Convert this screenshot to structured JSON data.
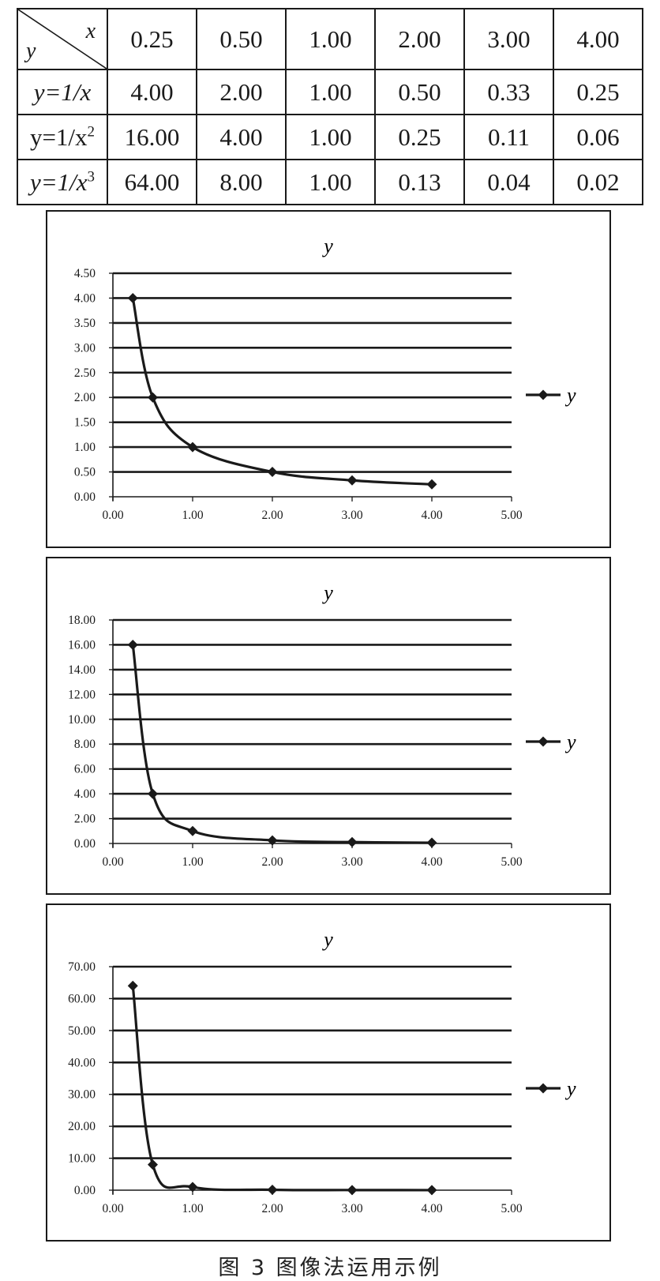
{
  "table": {
    "corner_x": "x",
    "corner_y": "y",
    "header": [
      "0.25",
      "0.50",
      "1.00",
      "2.00",
      "3.00",
      "4.00"
    ],
    "rows": [
      {
        "label_base": "y=1/x",
        "label_exp": "",
        "values": [
          "4.00",
          "2.00",
          "1.00",
          "0.50",
          "0.33",
          "0.25"
        ]
      },
      {
        "label_base": "y=1/x",
        "label_exp": "2",
        "values": [
          "16.00",
          "4.00",
          "1.00",
          "0.25",
          "0.11",
          "0.06"
        ]
      },
      {
        "label_base": "y=1/x",
        "label_exp": "3",
        "values": [
          "64.00",
          "8.00",
          "1.00",
          "0.13",
          "0.04",
          "0.02"
        ]
      }
    ]
  },
  "chart_data": [
    {
      "type": "line",
      "title": "y",
      "xlabel": "",
      "ylabel": "",
      "x": [
        0.25,
        0.5,
        1,
        2,
        3,
        4
      ],
      "series": [
        {
          "name": "y",
          "values": [
            4.0,
            2.0,
            1.0,
            0.5,
            0.33,
            0.25
          ]
        }
      ],
      "xlim": [
        0,
        5
      ],
      "ylim": [
        0,
        4.5
      ],
      "xticks": [
        "0.00",
        "1.00",
        "2.00",
        "3.00",
        "4.00",
        "5.00"
      ],
      "yticks": [
        "0.00",
        "0.50",
        "1.00",
        "1.50",
        "2.00",
        "2.50",
        "3.00",
        "3.50",
        "4.00",
        "4.50"
      ],
      "grid": "horizontal",
      "legend": "right",
      "marker": "diamond",
      "color": "#1a1a1a"
    },
    {
      "type": "line",
      "title": "y",
      "xlabel": "",
      "ylabel": "",
      "x": [
        0.25,
        0.5,
        1,
        2,
        3,
        4
      ],
      "series": [
        {
          "name": "y",
          "values": [
            16.0,
            4.0,
            1.0,
            0.25,
            0.11,
            0.06
          ]
        }
      ],
      "xlim": [
        0,
        5
      ],
      "ylim": [
        0,
        18
      ],
      "xticks": [
        "0.00",
        "1.00",
        "2.00",
        "3.00",
        "4.00",
        "5.00"
      ],
      "yticks": [
        "0.00",
        "2.00",
        "4.00",
        "6.00",
        "8.00",
        "10.00",
        "12.00",
        "14.00",
        "16.00",
        "18.00"
      ],
      "grid": "horizontal",
      "legend": "right",
      "marker": "diamond",
      "color": "#1a1a1a"
    },
    {
      "type": "line",
      "title": "y",
      "xlabel": "",
      "ylabel": "",
      "x": [
        0.25,
        0.5,
        1,
        2,
        3,
        4
      ],
      "series": [
        {
          "name": "y",
          "values": [
            64.0,
            8.0,
            1.0,
            0.13,
            0.04,
            0.02
          ]
        }
      ],
      "xlim": [
        0,
        5
      ],
      "ylim": [
        0,
        70
      ],
      "xticks": [
        "0.00",
        "1.00",
        "2.00",
        "3.00",
        "4.00",
        "5.00"
      ],
      "yticks": [
        "0.00",
        "10.00",
        "20.00",
        "30.00",
        "40.00",
        "50.00",
        "60.00",
        "70.00"
      ],
      "grid": "horizontal",
      "legend": "right",
      "marker": "diamond",
      "color": "#1a1a1a"
    }
  ],
  "caption": "图 3  图像法运用示例"
}
